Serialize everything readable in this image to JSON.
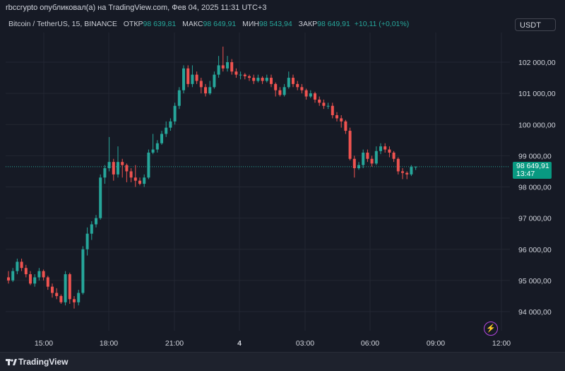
{
  "header": {
    "caption": "rbccrypto опубликовал(а) на TradingView.com, Фев 04, 2025 11:31 UTC+3"
  },
  "legend": {
    "symbol": "Bitcoin / TetherUS, 15, BINANCE",
    "open_label": "ОТКР",
    "open_value": "98 639,81",
    "high_label": "МАКС",
    "high_value": "98 649,91",
    "low_label": "МИН",
    "low_value": "98 543,94",
    "close_label": "ЗАКР",
    "close_value": "98 649,91",
    "change": "+10,11 (+0,01%)"
  },
  "currency_button": "USDT",
  "price_tag": {
    "price": "98 649,91",
    "countdown": "13:47"
  },
  "footer": {
    "brand": "TradingView"
  },
  "colors": {
    "up": "#26a69a",
    "down": "#ef5350",
    "background": "#161a25",
    "grid": "#232732"
  },
  "chart_data": {
    "type": "candlestick",
    "y_ticks": [
      "94 000,00",
      "95 000,00",
      "96 000,00",
      "97 000,00",
      "98 000,00",
      "99 000,00",
      "100 000,00",
      "101 000,00",
      "102 000,00"
    ],
    "y_tick_values": [
      94000,
      95000,
      96000,
      97000,
      98000,
      99000,
      100000,
      101000,
      102000
    ],
    "x_ticks": [
      "15:00",
      "18:00",
      "21:00",
      "4",
      "03:00",
      "06:00",
      "09:00",
      "12:00"
    ],
    "ylim": [
      93500,
      103000
    ],
    "current_price": 98649.91,
    "candles": [
      [
        95100,
        95000,
        95300,
        94900
      ],
      [
        95000,
        95300,
        95400,
        94950
      ],
      [
        95300,
        95600,
        95700,
        95200
      ],
      [
        95600,
        95400,
        95700,
        95300
      ],
      [
        95400,
        95200,
        95500,
        95100
      ],
      [
        95200,
        94900,
        95300,
        94850
      ],
      [
        94900,
        95100,
        95200,
        94800
      ],
      [
        95100,
        95300,
        95400,
        95000
      ],
      [
        95300,
        95100,
        95350,
        95000
      ],
      [
        95100,
        94800,
        95150,
        94700
      ],
      [
        94800,
        94600,
        94900,
        94450
      ],
      [
        94600,
        94500,
        94750,
        94400
      ],
      [
        94500,
        94300,
        94550,
        94250
      ],
      [
        94300,
        95200,
        95300,
        94200
      ],
      [
        95200,
        94400,
        95250,
        94250
      ],
      [
        94400,
        94300,
        94500,
        94100
      ],
      [
        94300,
        94600,
        94700,
        94200
      ],
      [
        94600,
        96000,
        96100,
        94550
      ],
      [
        96000,
        96500,
        96700,
        95800
      ],
      [
        96500,
        96800,
        96900,
        96300
      ],
      [
        96800,
        97000,
        97100,
        96700
      ],
      [
        97000,
        98300,
        98400,
        96950
      ],
      [
        98300,
        98600,
        98700,
        98100
      ],
      [
        98600,
        98800,
        99600,
        98500
      ],
      [
        98800,
        98400,
        98900,
        98200
      ],
      [
        98400,
        98800,
        99300,
        98300
      ],
      [
        98800,
        98700,
        98900,
        98300
      ],
      [
        98700,
        98500,
        98750,
        98150
      ],
      [
        98500,
        98300,
        98600,
        98150
      ],
      [
        98300,
        98200,
        98700,
        98000
      ],
      [
        98200,
        98100,
        98300,
        98050
      ],
      [
        98100,
        98300,
        98400,
        98000
      ],
      [
        98300,
        99100,
        99200,
        98250
      ],
      [
        99100,
        99200,
        99700,
        99050
      ],
      [
        99200,
        99400,
        99500,
        99100
      ],
      [
        99400,
        99700,
        99800,
        99350
      ],
      [
        99700,
        99900,
        100100,
        99600
      ],
      [
        99900,
        100100,
        100200,
        99800
      ],
      [
        100100,
        100600,
        100700,
        100000
      ],
      [
        100600,
        101100,
        101200,
        100500
      ],
      [
        101100,
        101800,
        101900,
        101000
      ],
      [
        101800,
        101300,
        101900,
        101200
      ],
      [
        101300,
        101600,
        101900,
        101200
      ],
      [
        101600,
        101400,
        101700,
        101300
      ],
      [
        101400,
        101200,
        101500,
        101000
      ],
      [
        101200,
        101000,
        101300,
        100900
      ],
      [
        101000,
        101200,
        101400,
        100950
      ],
      [
        101200,
        101600,
        101700,
        101150
      ],
      [
        101600,
        101900,
        102200,
        101500
      ],
      [
        101900,
        101800,
        102500,
        101700
      ],
      [
        101800,
        102000,
        102200,
        101700
      ],
      [
        102000,
        101700,
        102100,
        101600
      ],
      [
        101700,
        101600,
        101800,
        101500
      ],
      [
        101600,
        101600,
        101700,
        101450
      ],
      [
        101600,
        101550,
        101650,
        101450
      ],
      [
        101550,
        101500,
        101600,
        101400
      ],
      [
        101500,
        101400,
        101600,
        101300
      ],
      [
        101400,
        101500,
        101600,
        101350
      ],
      [
        101500,
        101400,
        101550,
        101300
      ],
      [
        101400,
        101500,
        101600,
        101350
      ],
      [
        101500,
        101300,
        101600,
        101200
      ],
      [
        101300,
        101100,
        101350,
        100900
      ],
      [
        101100,
        100950,
        101200,
        100900
      ],
      [
        100950,
        101200,
        101300,
        100900
      ],
      [
        101200,
        101500,
        101700,
        101150
      ],
      [
        101500,
        101300,
        101600,
        101200
      ],
      [
        101300,
        101200,
        101400,
        101100
      ],
      [
        101200,
        101100,
        101300,
        101000
      ],
      [
        101100,
        100900,
        101150,
        100800
      ],
      [
        100900,
        101000,
        101100,
        100850
      ],
      [
        101000,
        100800,
        101050,
        100700
      ],
      [
        100800,
        100700,
        100900,
        100600
      ],
      [
        100700,
        100600,
        100800,
        100500
      ],
      [
        100600,
        100600,
        100700,
        100500
      ],
      [
        100600,
        100300,
        100700,
        100200
      ],
      [
        100300,
        100200,
        100400,
        100100
      ],
      [
        100200,
        100100,
        100300,
        99900
      ],
      [
        100100,
        99800,
        100150,
        99700
      ],
      [
        99800,
        98900,
        99900,
        98850
      ],
      [
        98900,
        98600,
        99000,
        98300
      ],
      [
        98600,
        98700,
        98800,
        98550
      ],
      [
        98700,
        99100,
        99200,
        98600
      ],
      [
        99100,
        98900,
        99200,
        98800
      ],
      [
        98900,
        98750,
        99000,
        98650
      ],
      [
        98750,
        99150,
        99300,
        98700
      ],
      [
        99150,
        99300,
        99400,
        99050
      ],
      [
        99300,
        99200,
        99400,
        99100
      ],
      [
        99200,
        99100,
        99300,
        98950
      ],
      [
        99100,
        98900,
        99150,
        98800
      ],
      [
        98900,
        98500,
        98950,
        98400
      ],
      [
        98500,
        98450,
        98600,
        98250
      ],
      [
        98450,
        98400,
        98500,
        98250
      ],
      [
        98400,
        98639.81,
        98700,
        98350
      ],
      [
        98639.81,
        98649.91,
        98649.91,
        98543.94
      ]
    ]
  }
}
